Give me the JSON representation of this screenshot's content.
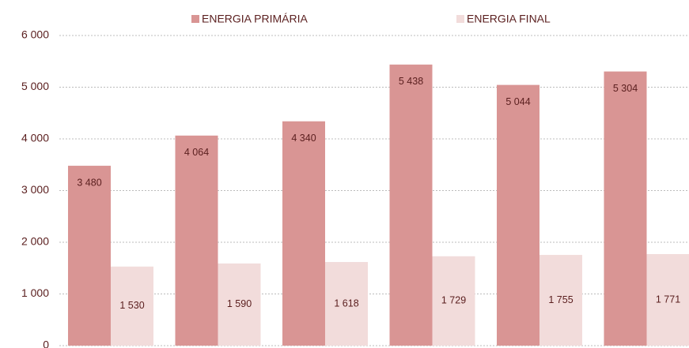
{
  "chart_data": {
    "type": "bar",
    "categories": [
      null,
      null,
      null,
      null,
      null,
      null
    ],
    "series": [
      {
        "name": "ENERGIA PRIMÁRIA",
        "color": "#d99594",
        "values": [
          3480,
          4064,
          4340,
          5438,
          5044,
          5304
        ],
        "value_labels": [
          "3 480",
          "4 064",
          "4 340",
          "5 438",
          "5 044",
          "5 304"
        ]
      },
      {
        "name": "ENERGIA FINAL",
        "color": "#f2dcdb",
        "values": [
          1530,
          1590,
          1618,
          1729,
          1755,
          1771
        ],
        "value_labels": [
          "1 530",
          "1 590",
          "1 618",
          "1 729",
          "1 755",
          "1 771"
        ]
      }
    ],
    "ylim": [
      0,
      6000
    ],
    "yticks": [
      0,
      {
        "value": 1000,
        "label": "1 000"
      },
      {
        "value": 2000,
        "label": "2 000"
      },
      {
        "value": 3000,
        "label": "3 000"
      },
      {
        "value": 4000,
        "label": "4 000"
      },
      {
        "value": 5000,
        "label": "5 000"
      },
      {
        "value": 6000,
        "label": "6 000"
      }
    ],
    "grid": true,
    "legend": "top"
  }
}
